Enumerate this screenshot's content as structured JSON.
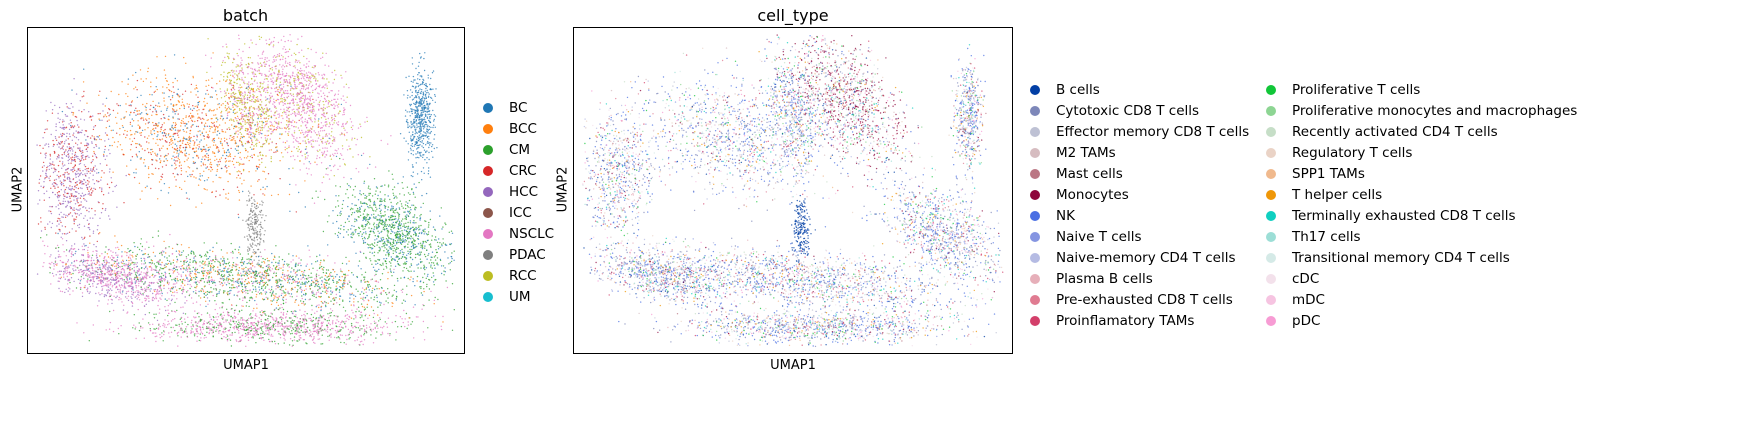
{
  "chart_data": [
    {
      "type": "scatter",
      "title": "batch",
      "xlabel": "UMAP1",
      "ylabel": "UMAP2",
      "ticks": "none",
      "legend_placement": "right",
      "series": [
        {
          "name": "BC",
          "color": "#1f77b4"
        },
        {
          "name": "BCC",
          "color": "#ff7f0e"
        },
        {
          "name": "CM",
          "color": "#2ca02c"
        },
        {
          "name": "CRC",
          "color": "#d62728"
        },
        {
          "name": "HCC",
          "color": "#9467bd"
        },
        {
          "name": "ICC",
          "color": "#8c564b"
        },
        {
          "name": "NSCLC",
          "color": "#e377c2"
        },
        {
          "name": "PDAC",
          "color": "#7f7f7f"
        },
        {
          "name": "RCC",
          "color": "#bcbd22"
        },
        {
          "name": "UM",
          "color": "#17becf"
        }
      ]
    },
    {
      "type": "scatter",
      "title": "cell_type",
      "xlabel": "UMAP1",
      "ylabel": "UMAP2",
      "ticks": "none",
      "legend_placement": "right",
      "series": [
        {
          "name": "B cells",
          "color": "#023fa5"
        },
        {
          "name": "Cytotoxic CD8 T cells",
          "color": "#7d87b9"
        },
        {
          "name": "Effector memory CD8 T cells",
          "color": "#bec1d4"
        },
        {
          "name": "M2 TAMs",
          "color": "#d6bcc0"
        },
        {
          "name": "Mast cells",
          "color": "#bb7784"
        },
        {
          "name": "Monocytes",
          "color": "#8e063b"
        },
        {
          "name": "NK",
          "color": "#4a6fe3"
        },
        {
          "name": "Naive T cells",
          "color": "#8595e1"
        },
        {
          "name": "Naive-memory CD4 T cells",
          "color": "#b5bbe3"
        },
        {
          "name": "Plasma B cells",
          "color": "#e6afb9"
        },
        {
          "name": "Pre-exhausted CD8 T cells",
          "color": "#e07b91"
        },
        {
          "name": "Proinflamatory TAMs",
          "color": "#d33f6a"
        },
        {
          "name": "Proliferative T cells",
          "color": "#11c638"
        },
        {
          "name": "Proliferative monocytes and macrophages",
          "color": "#8dd593"
        },
        {
          "name": "Recently activated CD4 T cells",
          "color": "#c6dec7"
        },
        {
          "name": "Regulatory T cells",
          "color": "#ead3c6"
        },
        {
          "name": "SPP1 TAMs",
          "color": "#f0b98d"
        },
        {
          "name": "T helper cells",
          "color": "#ef9708"
        },
        {
          "name": "Terminally exhausted CD8 T cells",
          "color": "#0fcfc0"
        },
        {
          "name": "Th17 cells",
          "color": "#9cded6"
        },
        {
          "name": "Transitional memory CD4 T cells",
          "color": "#d5eae7"
        },
        {
          "name": "cDC",
          "color": "#f3e1eb"
        },
        {
          "name": "mDC",
          "color": "#f6c4e1"
        },
        {
          "name": "pDC",
          "color": "#f79cd4"
        }
      ]
    }
  ]
}
